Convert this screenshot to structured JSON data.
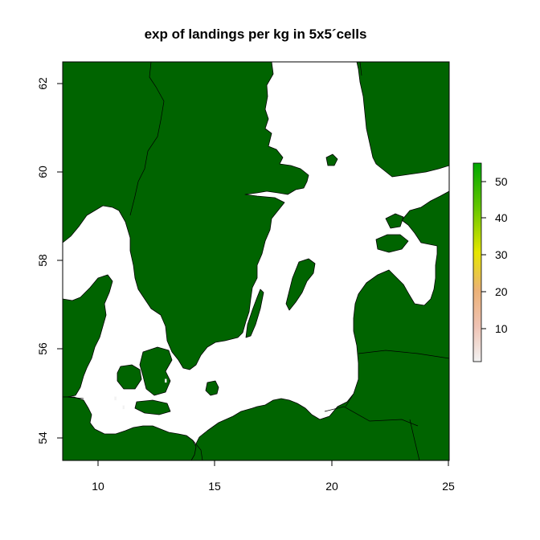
{
  "chart_data": {
    "type": "heatmap",
    "title": "exp of landings per kg in 5x5´cells",
    "xlabel": "",
    "ylabel": "",
    "xlim": [
      8.5,
      25
    ],
    "ylim": [
      53.5,
      62.5
    ],
    "x_ticks": [
      "10",
      "15",
      "20",
      "25"
    ],
    "y_ticks": [
      "54",
      "56",
      "58",
      "60",
      "62"
    ],
    "land_color": "#006400",
    "sea_color": "#ffffff",
    "legend": {
      "position": "right",
      "range": [
        0,
        55
      ],
      "ticks": [
        "10",
        "20",
        "30",
        "40",
        "50"
      ],
      "colors": [
        "#f2f2f2",
        "#efc2b3",
        "#ecb176",
        "#e6e600",
        "#63c600",
        "#00a600"
      ]
    },
    "cells": [
      {
        "lon": 10.75,
        "lat": 54.9,
        "value": 1
      },
      {
        "lon": 11.1,
        "lat": 54.7,
        "value": 1
      },
      {
        "lon": 12.9,
        "lat": 55.3,
        "value": 1
      }
    ]
  }
}
